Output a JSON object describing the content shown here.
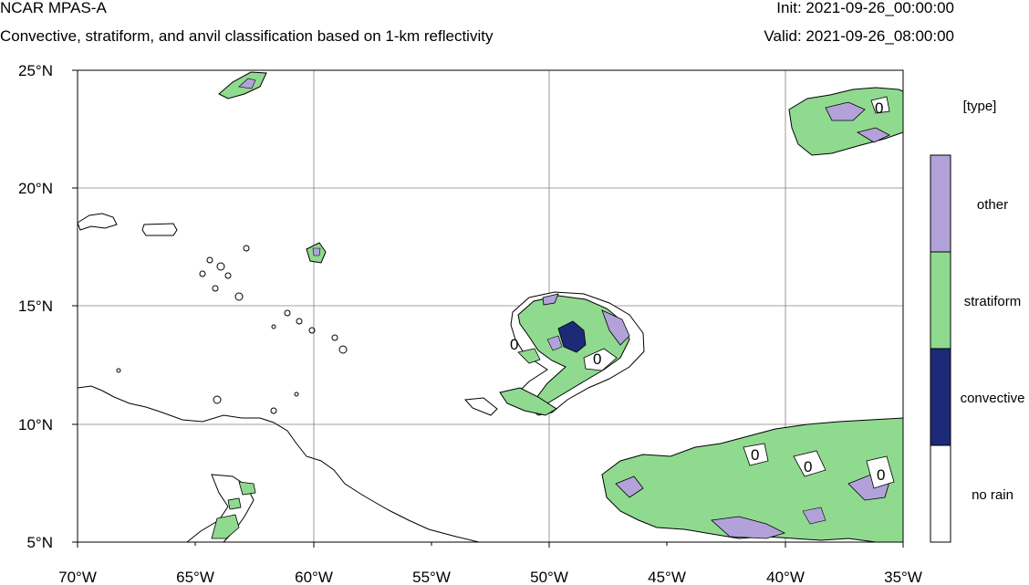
{
  "header": {
    "title": "NCAR MPAS-A",
    "subtitle": "Convective, stratiform, and anvil classification based on 1-km reflectivity",
    "init": "Init: 2021-09-26_00:00:00",
    "valid": "Valid: 2021-09-26_08:00:00"
  },
  "map": {
    "lon_range": [
      -70,
      -35
    ],
    "lat_range": [
      5,
      25
    ],
    "x_ticks": [
      "70°W",
      "65°W",
      "60°W",
      "55°W",
      "50°W",
      "45°W",
      "40°W",
      "35°W"
    ],
    "y_ticks": [
      "25°N",
      "20°N",
      "15°N",
      "10°N",
      "5°N"
    ],
    "contour_label": "0",
    "grid": true
  },
  "legend": {
    "title": "[type]",
    "items": [
      {
        "label": "other",
        "color": "#b3a2d9"
      },
      {
        "label": "stratiform",
        "color": "#8fda8f"
      },
      {
        "label": "convective",
        "color": "#1c2a78"
      },
      {
        "label": "no rain",
        "color": "#ffffff"
      }
    ]
  },
  "colors": {
    "coastline": "#000000",
    "gridline": "#808080"
  }
}
